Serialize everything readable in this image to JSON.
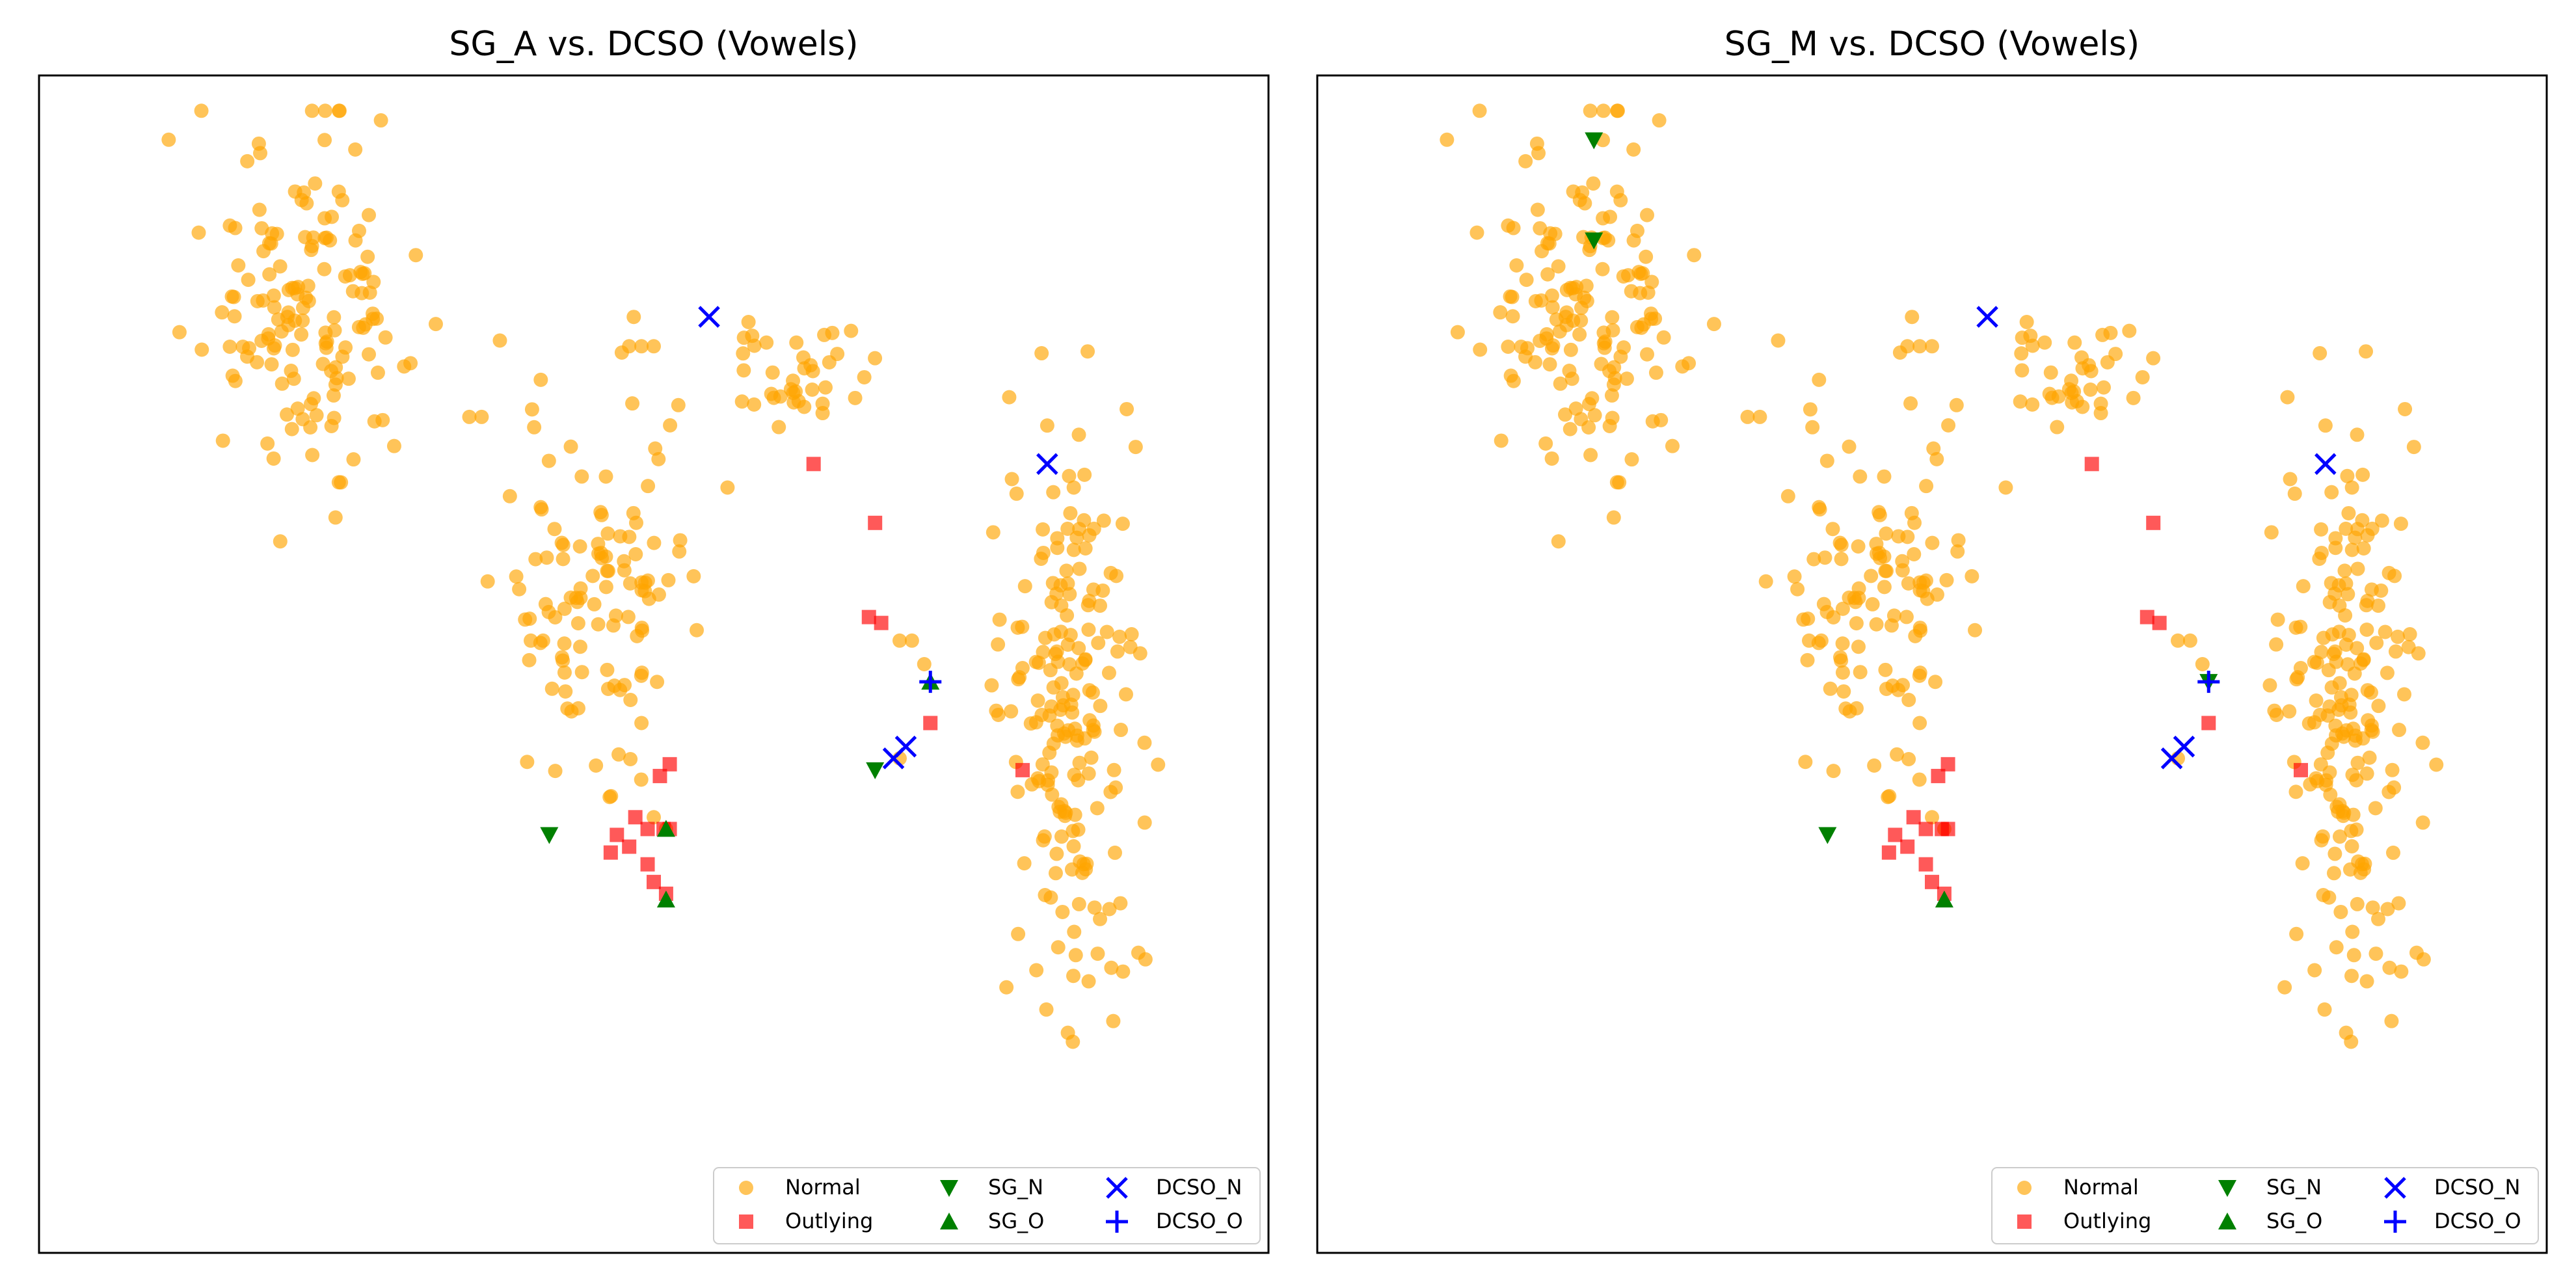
{
  "chart_data": [
    {
      "type": "scatter",
      "title": "SG_A vs. DCSO (Vowels)",
      "xlabel": "",
      "ylabel": "",
      "grid": false,
      "axes_ticks": false,
      "legend": {
        "placement": "lower-right",
        "columns": 3,
        "entries": [
          "Normal",
          "Outlying",
          "SG_N",
          "SG_O",
          "DCSO_N",
          "DCSO_O"
        ]
      },
      "series": [
        {
          "name": "Normal",
          "marker": "circle",
          "color": "#FFA500",
          "alpha": 0.65,
          "clusters": [
            {
              "center": [
                22,
                20
              ],
              "spread": [
                8,
                13
              ],
              "count": 150
            },
            {
              "center": [
                45,
                43
              ],
              "spread": [
                7,
                13
              ],
              "count": 110
            },
            {
              "center": [
                62,
                25
              ],
              "spread": [
                5,
                4
              ],
              "count": 38
            },
            {
              "center": [
                84,
                55
              ],
              "spread": [
                5,
                22
              ],
              "count": 190
            }
          ],
          "points": [
            [
              48,
              23
            ],
            [
              49,
              23
            ],
            [
              50,
              23
            ],
            [
              35,
              29
            ],
            [
              36,
              29
            ],
            [
              44,
              40
            ],
            [
              40,
              48
            ],
            [
              41,
              48
            ],
            [
              52,
              28
            ],
            [
              56,
              35
            ],
            [
              70,
              48
            ],
            [
              71,
              48
            ],
            [
              72,
              50
            ],
            [
              70,
              58
            ],
            [
              49,
              55
            ],
            [
              50,
              63
            ],
            [
              51,
              64
            ]
          ]
        },
        {
          "name": "Outlying",
          "marker": "square",
          "color": "#FF0000",
          "alpha": 0.65,
          "points": [
            [
              63,
              33
            ],
            [
              68,
              38
            ],
            [
              67.5,
              46
            ],
            [
              68.5,
              46.5
            ],
            [
              72.5,
              55
            ],
            [
              80,
              59
            ],
            [
              50.5,
              59.5
            ],
            [
              51.3,
              58.5
            ],
            [
              47,
              64.5
            ],
            [
              48.5,
              63
            ],
            [
              49.5,
              64
            ],
            [
              46.5,
              66
            ],
            [
              48,
              65.5
            ],
            [
              49.5,
              67
            ],
            [
              50.8,
              64
            ],
            [
              51.3,
              64
            ],
            [
              50,
              68.5
            ],
            [
              51,
              69.5
            ]
          ]
        },
        {
          "name": "SG_N",
          "marker": "triangle-down",
          "color": "#008000",
          "points": [
            [
              41.5,
              64.5
            ],
            [
              68,
              59
            ]
          ]
        },
        {
          "name": "SG_O",
          "marker": "triangle-up",
          "color": "#008000",
          "points": [
            [
              51,
              64
            ],
            [
              51,
              70
            ],
            [
              72.5,
              51.5
            ]
          ]
        },
        {
          "name": "DCSO_N",
          "marker": "x",
          "color": "#0000FF",
          "points": [
            [
              54.5,
              20.5
            ],
            [
              82,
              33
            ],
            [
              69.5,
              58
            ],
            [
              70.5,
              57
            ]
          ]
        },
        {
          "name": "DCSO_O",
          "marker": "plus",
          "color": "#0000FF",
          "points": [
            [
              72.5,
              51.5
            ]
          ]
        }
      ]
    },
    {
      "type": "scatter",
      "title": "SG_M vs. DCSO (Vowels)",
      "xlabel": "",
      "ylabel": "",
      "grid": false,
      "axes_ticks": false,
      "legend": {
        "placement": "lower-right",
        "columns": 3,
        "entries": [
          "Normal",
          "Outlying",
          "SG_N",
          "SG_O",
          "DCSO_N",
          "DCSO_O"
        ]
      },
      "series": [
        {
          "name": "Normal",
          "marker": "circle",
          "color": "#FFA500",
          "alpha": 0.65,
          "clusters": [
            {
              "center": [
                22,
                20
              ],
              "spread": [
                8,
                13
              ],
              "count": 150
            },
            {
              "center": [
                45,
                43
              ],
              "spread": [
                7,
                13
              ],
              "count": 110
            },
            {
              "center": [
                62,
                25
              ],
              "spread": [
                5,
                4
              ],
              "count": 38
            },
            {
              "center": [
                84,
                55
              ],
              "spread": [
                5,
                22
              ],
              "count": 190
            }
          ],
          "points": [
            [
              48,
              23
            ],
            [
              49,
              23
            ],
            [
              50,
              23
            ],
            [
              35,
              29
            ],
            [
              36,
              29
            ],
            [
              44,
              40
            ],
            [
              40,
              48
            ],
            [
              41,
              48
            ],
            [
              52,
              28
            ],
            [
              56,
              35
            ],
            [
              70,
              48
            ],
            [
              71,
              48
            ],
            [
              72,
              50
            ],
            [
              70,
              58
            ],
            [
              49,
              55
            ],
            [
              50,
              63
            ],
            [
              51,
              64
            ]
          ]
        },
        {
          "name": "Outlying",
          "marker": "square",
          "color": "#FF0000",
          "alpha": 0.65,
          "points": [
            [
              63,
              33
            ],
            [
              68,
              38
            ],
            [
              67.5,
              46
            ],
            [
              68.5,
              46.5
            ],
            [
              72.5,
              55
            ],
            [
              80,
              59
            ],
            [
              50.5,
              59.5
            ],
            [
              51.3,
              58.5
            ],
            [
              47,
              64.5
            ],
            [
              48.5,
              63
            ],
            [
              49.5,
              64
            ],
            [
              46.5,
              66
            ],
            [
              48,
              65.5
            ],
            [
              49.5,
              67
            ],
            [
              50.8,
              64
            ],
            [
              51.3,
              64
            ],
            [
              50,
              68.5
            ],
            [
              51,
              69.5
            ]
          ]
        },
        {
          "name": "SG_N",
          "marker": "triangle-down",
          "color": "#008000",
          "points": [
            [
              22.5,
              5.5
            ],
            [
              22.5,
              14
            ],
            [
              41.5,
              64.5
            ],
            [
              72.5,
              51.5
            ]
          ]
        },
        {
          "name": "SG_O",
          "marker": "triangle-up",
          "color": "#008000",
          "points": [
            [
              51,
              70
            ]
          ]
        },
        {
          "name": "DCSO_N",
          "marker": "x",
          "color": "#0000FF",
          "points": [
            [
              54.5,
              20.5
            ],
            [
              82,
              33
            ],
            [
              69.5,
              58
            ],
            [
              70.5,
              57
            ]
          ]
        },
        {
          "name": "DCSO_O",
          "marker": "plus",
          "color": "#0000FF",
          "points": [
            [
              72.5,
              51.5
            ]
          ]
        }
      ]
    }
  ],
  "colors": {
    "normal": "#FFA500",
    "outlying": "#FF0000",
    "sg": "#008000",
    "dcso": "#0000FF",
    "frame": "#000000",
    "legend_frame": "#cccccc"
  }
}
